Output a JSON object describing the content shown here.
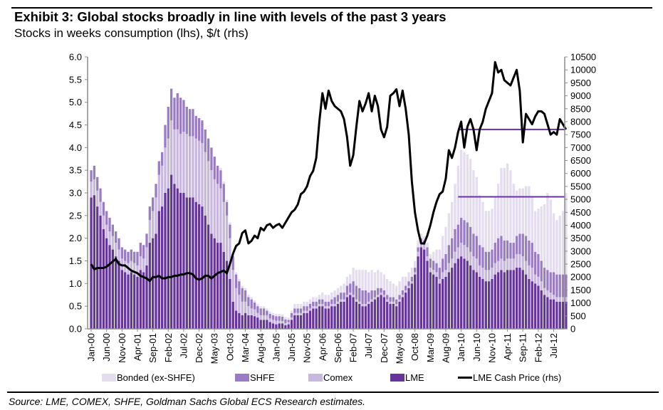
{
  "header": {
    "title": "Exhibit 3: Global stocks broadly in line with levels of the past 3 years",
    "subtitle": "Stocks in weeks consumption (lhs), $/t (rhs)"
  },
  "footer": {
    "source": "Source: LME, COMEX, SHFE, Goldman Sachs Global ECS Research estimates."
  },
  "colors": {
    "bonded": "#e4dcef",
    "shfe": "#9a7cc4",
    "comex": "#c8b7df",
    "lme": "#65359b",
    "price": "#000000",
    "reference": "#6a2fa3",
    "axis": "#8c8c8c"
  },
  "chart_data": {
    "type": "bar",
    "stacked": true,
    "title": "Exhibit 3: Global stocks broadly in line with levels of the past 3 years",
    "subtitle": "Stocks in weeks consumption (lhs), $/t (rhs)",
    "start_month": "Jan-00",
    "months_count": 155,
    "x_tick_labels": [
      "Jan-00",
      "Jun-00",
      "Nov-00",
      "Apr-01",
      "Sep-01",
      "Feb-02",
      "Jul-02",
      "Dec-02",
      "May-03",
      "Oct-03",
      "Mar-04",
      "Aug-04",
      "Jan-05",
      "Jun-05",
      "Nov-05",
      "Apr-06",
      "Sep-06",
      "Feb-07",
      "Jul-07",
      "Dec-07",
      "May-08",
      "Oct-08",
      "Mar-09",
      "Aug-09",
      "Jan-10",
      "Jun-10",
      "Nov-10",
      "Apr-11",
      "Sep-11",
      "Feb-12",
      "Jul-12"
    ],
    "x_tick_every_months": 5,
    "y_left": {
      "label": "Stocks in weeks consumption",
      "range": [
        0,
        6
      ],
      "ticks": [
        "0.0",
        "0.5",
        "1.0",
        "1.5",
        "2.0",
        "2.5",
        "3.0",
        "3.5",
        "4.0",
        "4.5",
        "5.0",
        "5.5",
        "6.0"
      ]
    },
    "y_right": {
      "label": "$/t",
      "range": [
        0,
        10500
      ],
      "ticks": [
        "0",
        "500",
        "1000",
        "1500",
        "2000",
        "2500",
        "3000",
        "3500",
        "4000",
        "4500",
        "5000",
        "5500",
        "6000",
        "6500",
        "7000",
        "7500",
        "8000",
        "8500",
        "9000",
        "9500",
        "10000",
        "10500"
      ]
    },
    "legend": [
      "Bonded (ex-SHFE)",
      "SHFE",
      "Comex",
      "LME",
      "LME Cash Price (rhs)"
    ],
    "legend_position": "bottom",
    "series": [
      {
        "name": "LME",
        "axis": "left",
        "kind": "bar",
        "values": [
          2.9,
          2.95,
          2.7,
          2.5,
          2.2,
          2.0,
          1.85,
          1.75,
          1.6,
          1.5,
          1.3,
          1.25,
          1.2,
          1.25,
          1.2,
          1.15,
          1.3,
          1.25,
          1.4,
          1.9,
          2.0,
          2.1,
          2.6,
          2.7,
          3.0,
          3.1,
          3.4,
          3.2,
          3.1,
          3.0,
          3.0,
          2.9,
          2.9,
          2.9,
          2.8,
          2.75,
          2.7,
          2.5,
          2.3,
          2.1,
          2.0,
          1.9,
          1.9,
          1.7,
          1.5,
          1.1,
          0.6,
          0.4,
          0.35,
          0.3,
          0.35,
          0.3,
          0.3,
          0.28,
          0.25,
          0.2,
          0.2,
          0.2,
          0.15,
          0.12,
          0.1,
          0.12,
          0.12,
          0.08,
          0.1,
          0.2,
          0.3,
          0.3,
          0.3,
          0.35,
          0.35,
          0.4,
          0.45,
          0.45,
          0.5,
          0.5,
          0.45,
          0.45,
          0.5,
          0.5,
          0.55,
          0.6,
          0.6,
          0.7,
          0.75,
          0.7,
          0.6,
          0.55,
          0.5,
          0.5,
          0.55,
          0.6,
          0.65,
          0.7,
          0.75,
          0.7,
          0.6,
          0.55,
          0.55,
          0.5,
          0.6,
          0.7,
          0.8,
          0.9,
          1.0,
          1.2,
          1.6,
          1.8,
          1.75,
          1.5,
          1.25,
          1.2,
          1.15,
          1.0,
          1.1,
          1.15,
          1.25,
          1.35,
          1.45,
          1.55,
          1.6,
          1.55,
          1.5,
          1.4,
          1.3,
          1.25,
          1.15,
          1.1,
          1.05,
          1.05,
          1.1,
          1.2,
          1.25,
          1.3,
          1.25,
          1.3,
          1.3,
          1.3,
          1.35,
          1.35,
          1.3,
          1.2,
          1.1,
          1.05,
          1.0,
          0.95,
          0.85,
          0.75,
          0.7,
          0.65,
          0.65,
          0.6,
          0.6,
          0.6,
          0.6
        ]
      },
      {
        "name": "Comex",
        "axis": "left",
        "kind": "bar",
        "values": [
          0.35,
          0.35,
          0.35,
          0.3,
          0.3,
          0.3,
          0.3,
          0.3,
          0.3,
          0.25,
          0.25,
          0.25,
          0.25,
          0.25,
          0.25,
          0.25,
          0.3,
          0.3,
          0.4,
          0.5,
          0.6,
          0.8,
          0.8,
          0.9,
          1.0,
          1.1,
          1.2,
          1.2,
          1.3,
          1.3,
          1.35,
          1.4,
          1.35,
          1.35,
          1.4,
          1.4,
          1.4,
          1.4,
          1.4,
          1.4,
          1.3,
          1.3,
          1.2,
          1.1,
          1.0,
          0.9,
          0.7,
          0.5,
          0.4,
          0.3,
          0.25,
          0.2,
          0.15,
          0.15,
          0.1,
          0.1,
          0.1,
          0.1,
          0.08,
          0.08,
          0.08,
          0.06,
          0.05,
          0.05,
          0.05,
          0.05,
          0.05,
          0.05,
          0.05,
          0.05,
          0.05,
          0.05,
          0.05,
          0.05,
          0.05,
          0.05,
          0.05,
          0.05,
          0.05,
          0.05,
          0.05,
          0.05,
          0.05,
          0.05,
          0.05,
          0.05,
          0.05,
          0.05,
          0.05,
          0.05,
          0.05,
          0.05,
          0.05,
          0.05,
          0.05,
          0.05,
          0.05,
          0.05,
          0.05,
          0.05,
          0.05,
          0.05,
          0.05,
          0.05,
          0.05,
          0.05,
          0.1,
          0.1,
          0.1,
          0.1,
          0.1,
          0.1,
          0.1,
          0.1,
          0.15,
          0.15,
          0.2,
          0.2,
          0.25,
          0.25,
          0.3,
          0.3,
          0.3,
          0.3,
          0.3,
          0.3,
          0.25,
          0.25,
          0.25,
          0.25,
          0.25,
          0.25,
          0.25,
          0.25,
          0.25,
          0.25,
          0.25,
          0.25,
          0.3,
          0.3,
          0.3,
          0.3,
          0.3,
          0.3,
          0.2,
          0.2,
          0.2,
          0.15,
          0.15,
          0.15,
          0.1,
          0.1,
          0.1,
          0.1,
          0.1
        ]
      },
      {
        "name": "SHFE",
        "axis": "left",
        "kind": "bar",
        "values": [
          0.25,
          0.3,
          0.3,
          0.3,
          0.3,
          0.3,
          0.3,
          0.25,
          0.25,
          0.25,
          0.25,
          0.25,
          0.25,
          0.25,
          0.25,
          0.3,
          0.3,
          0.3,
          0.3,
          0.3,
          0.3,
          0.3,
          0.3,
          0.3,
          0.5,
          0.7,
          0.7,
          0.7,
          0.8,
          0.8,
          0.7,
          0.6,
          0.6,
          0.6,
          0.5,
          0.5,
          0.5,
          0.5,
          0.5,
          0.5,
          0.5,
          0.4,
          0.4,
          0.4,
          0.3,
          0.3,
          0.3,
          0.3,
          0.3,
          0.3,
          0.25,
          0.2,
          0.2,
          0.15,
          0.15,
          0.15,
          0.15,
          0.1,
          0.1,
          0.1,
          0.1,
          0.1,
          0.1,
          0.08,
          0.05,
          0.1,
          0.1,
          0.1,
          0.1,
          0.1,
          0.1,
          0.1,
          0.1,
          0.1,
          0.1,
          0.1,
          0.1,
          0.1,
          0.1,
          0.15,
          0.15,
          0.15,
          0.15,
          0.2,
          0.2,
          0.3,
          0.3,
          0.3,
          0.3,
          0.3,
          0.2,
          0.2,
          0.15,
          0.15,
          0.1,
          0.1,
          0.1,
          0.1,
          0.1,
          0.1,
          0.1,
          0.1,
          0.1,
          0.1,
          0.1,
          0.1,
          0.1,
          0.1,
          0.1,
          0.2,
          0.2,
          0.2,
          0.2,
          0.25,
          0.3,
          0.35,
          0.4,
          0.45,
          0.5,
          0.5,
          0.55,
          0.55,
          0.55,
          0.55,
          0.5,
          0.5,
          0.45,
          0.45,
          0.4,
          0.4,
          0.4,
          0.45,
          0.5,
          0.5,
          0.45,
          0.4,
          0.35,
          0.35,
          0.4,
          0.45,
          0.5,
          0.55,
          0.55,
          0.55,
          0.5,
          0.5,
          0.45,
          0.45,
          0.45,
          0.45,
          0.5,
          0.5,
          0.5,
          0.5,
          0.5
        ]
      },
      {
        "name": "Bonded (ex-SHFE)",
        "axis": "left",
        "kind": "bar",
        "values": [
          0,
          0,
          0,
          0,
          0,
          0,
          0,
          0,
          0,
          0,
          0,
          0,
          0,
          0,
          0,
          0,
          0,
          0,
          0,
          0,
          0,
          0,
          0,
          0,
          0,
          0,
          0,
          0,
          0,
          0,
          0,
          0,
          0,
          0,
          0,
          0,
          0,
          0,
          0,
          0,
          0,
          0,
          0.05,
          0.05,
          0.05,
          0.05,
          0.05,
          0.05,
          0.05,
          0.05,
          0.05,
          0.05,
          0.05,
          0.05,
          0.05,
          0.05,
          0.05,
          0.05,
          0.05,
          0.05,
          0.05,
          0.05,
          0.05,
          0.05,
          0.05,
          0.05,
          0.1,
          0.1,
          0.1,
          0.1,
          0.1,
          0.1,
          0.1,
          0.1,
          0.1,
          0.15,
          0.15,
          0.15,
          0.15,
          0.15,
          0.15,
          0.15,
          0.2,
          0.2,
          0.2,
          0.3,
          0.35,
          0.4,
          0.45,
          0.45,
          0.45,
          0.45,
          0.4,
          0.4,
          0.35,
          0.35,
          0.35,
          0.35,
          0.3,
          0.3,
          0.3,
          0.3,
          0.2,
          0.2,
          0.2,
          0.15,
          0.15,
          0.1,
          0.1,
          0.1,
          0.1,
          0.2,
          0.3,
          0.4,
          0.5,
          0.6,
          0.7,
          0.8,
          1.0,
          1.3,
          1.5,
          1.5,
          1.5,
          1.5,
          1.4,
          1.3,
          1.1,
          1.0,
          0.9,
          0.9,
          0.9,
          1.0,
          1.2,
          1.5,
          1.6,
          1.7,
          1.6,
          1.3,
          1.0,
          1.0,
          1.0,
          1.1,
          1.2,
          1.0,
          0.9,
          1.0,
          1.2,
          1.4,
          1.7,
          1.6,
          1.3,
          1.2,
          1.3,
          1.4,
          1.8
        ]
      },
      {
        "name": "LME Cash Price (rhs)",
        "axis": "right",
        "kind": "line",
        "values": [
          2500,
          2300,
          2350,
          2350,
          2350,
          2400,
          2500,
          2600,
          2700,
          2500,
          2450,
          2450,
          2350,
          2250,
          2200,
          2150,
          2050,
          2000,
          1950,
          1850,
          2000,
          2000,
          2050,
          1950,
          1950,
          2000,
          2000,
          2050,
          2050,
          2100,
          2100,
          2150,
          2150,
          2100,
          1950,
          1900,
          1950,
          2050,
          2050,
          1950,
          2050,
          2150,
          2200,
          2250,
          2150,
          2500,
          2900,
          3200,
          3300,
          3700,
          3800,
          3300,
          3400,
          3600,
          3500,
          3900,
          3800,
          4000,
          4050,
          3900,
          4000,
          4050,
          3900,
          4100,
          4300,
          4500,
          4600,
          4800,
          5200,
          5300,
          5500,
          5900,
          6100,
          6600,
          8000,
          9100,
          8500,
          9200,
          8800,
          8600,
          8500,
          8400,
          8100,
          7400,
          6300,
          6700,
          7800,
          8800,
          8400,
          8700,
          9100,
          8400,
          9000,
          8600,
          7700,
          7400,
          7800,
          9000,
          9100,
          9250,
          8600,
          9200,
          8500,
          7500,
          5700,
          4500,
          3800,
          3300,
          3300,
          3600,
          4000,
          4500,
          4900,
          5200,
          5300,
          5800,
          6900,
          6600,
          7000,
          7600,
          8000,
          7000,
          7800,
          8100,
          7700,
          6900,
          7700,
          8000,
          8500,
          8800,
          9100,
          10300,
          9900,
          10000,
          9600,
          9500,
          9400,
          9700,
          10000,
          9200,
          7200,
          8300,
          8100,
          7900,
          8200,
          8400,
          8400,
          8300,
          7900,
          7500,
          7600,
          7500,
          8100,
          7900,
          7700
        ]
      }
    ],
    "reference_lines": [
      {
        "axis": "right",
        "value": 7700,
        "from_month_index": 119
      },
      {
        "axis": "right",
        "value": 5100,
        "from_month_index": 119
      }
    ],
    "grid": false
  }
}
